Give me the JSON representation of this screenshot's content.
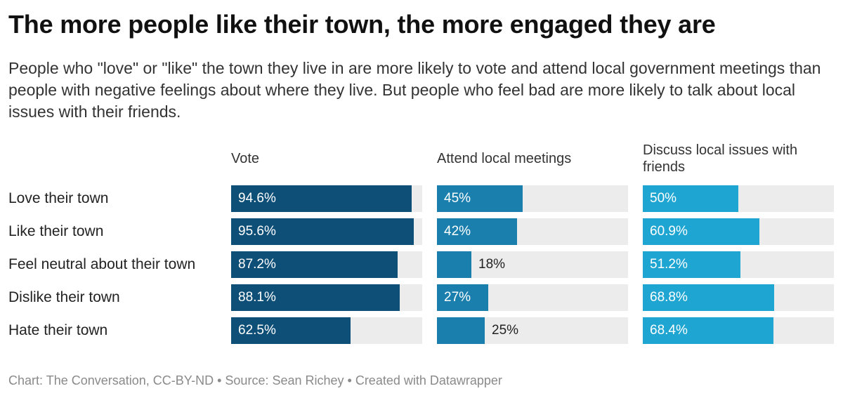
{
  "title": "The more people like their town, the more engaged they are",
  "subtitle": "People who \"love\" or \"like\" the town they live in are more likely to vote and attend local government meetings than people with negative feelings about where they live. But people who feel bad are more likely to talk about local issues with their friends.",
  "footer": "Chart: The Conversation, CC-BY-ND • Source: Sean Richey • Created with Datawrapper",
  "chart_data": {
    "type": "bar",
    "title": "The more people like their town, the more engaged they are",
    "categories": [
      "Love their town",
      "Like their town",
      "Feel neutral about their town",
      "Dislike their town",
      "Hate their town"
    ],
    "xlim": [
      0,
      100
    ],
    "series": [
      {
        "name": "Vote",
        "color": "#0e4f78",
        "values": [
          94.6,
          95.6,
          87.2,
          88.1,
          62.5
        ],
        "labels": [
          "94.6%",
          "95.6%",
          "87.2%",
          "88.1%",
          "62.5%"
        ]
      },
      {
        "name": "Attend local meetings",
        "color": "#1a7fad",
        "values": [
          45,
          42,
          18,
          27,
          25
        ],
        "labels": [
          "45%",
          "42%",
          "18%",
          "27%",
          "25%"
        ]
      },
      {
        "name": "Discuss local issues with friends",
        "color": "#1fa5d1",
        "values": [
          50,
          60.9,
          51.2,
          68.8,
          68.4
        ],
        "labels": [
          "50%",
          "60.9%",
          "51.2%",
          "68.8%",
          "68.4%"
        ]
      }
    ]
  }
}
